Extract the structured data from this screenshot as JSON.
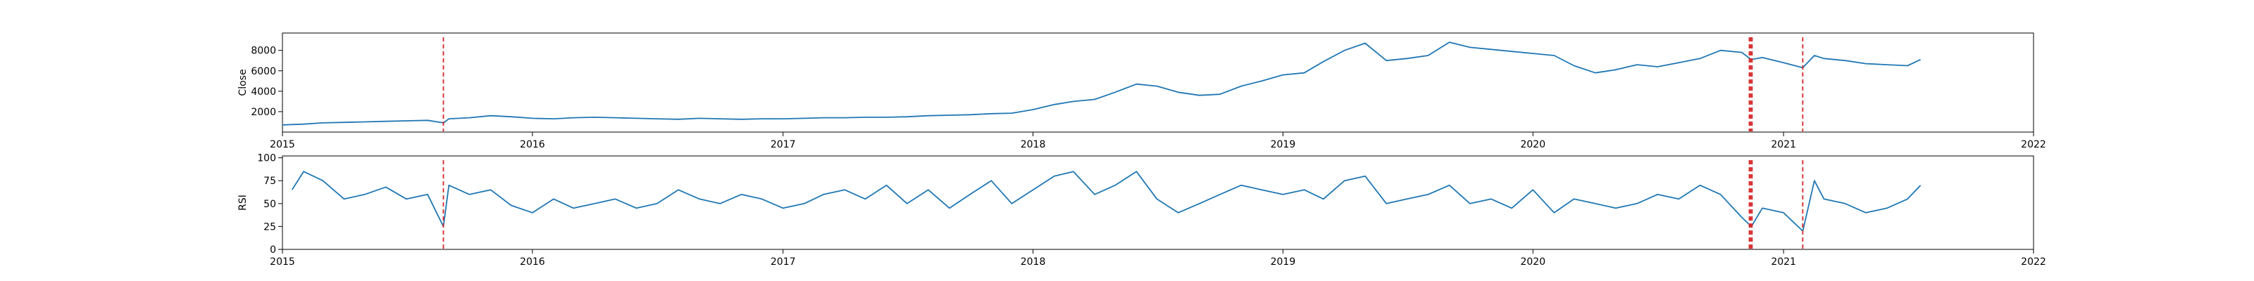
{
  "chart_data": [
    {
      "type": "line",
      "title": "",
      "xlabel": "",
      "ylabel": "Close",
      "xlim": [
        "2015-01-01",
        "2022-01-01"
      ],
      "ylim": [
        0,
        9700
      ],
      "x_ticks": [
        "2015",
        "2016",
        "2017",
        "2018",
        "2019",
        "2020",
        "2021",
        "2022"
      ],
      "y_ticks": [
        2000,
        4000,
        6000,
        8000
      ],
      "line_color": "#1f77b4",
      "marker_color": "#d62728",
      "marker_style": "dashed vertical lines",
      "vlines": [
        "2015-08-24",
        "2020-11-12",
        "2020-11-14",
        "2020-11-16",
        "2021-01-29"
      ],
      "series": [
        {
          "x": [
            "2015-01-01",
            "2015-02-01",
            "2015-03-01",
            "2015-04-01",
            "2015-05-01",
            "2015-06-01",
            "2015-07-01",
            "2015-08-01",
            "2015-08-24",
            "2015-09-01",
            "2015-10-01",
            "2015-11-01",
            "2015-12-01",
            "2016-01-01",
            "2016-02-01",
            "2016-03-01",
            "2016-04-01",
            "2016-05-01",
            "2016-06-01",
            "2016-07-01",
            "2016-08-01",
            "2016-09-01",
            "2016-10-01",
            "2016-11-01",
            "2016-12-01",
            "2017-01-01",
            "2017-02-01",
            "2017-03-01",
            "2017-04-01",
            "2017-05-01",
            "2017-06-01",
            "2017-07-01",
            "2017-08-01",
            "2017-09-01",
            "2017-10-01",
            "2017-11-01",
            "2017-12-01",
            "2018-01-01",
            "2018-02-01",
            "2018-03-01",
            "2018-04-01",
            "2018-05-01",
            "2018-06-01",
            "2018-07-01",
            "2018-08-01",
            "2018-09-01",
            "2018-10-01",
            "2018-11-01",
            "2018-12-01",
            "2019-01-01",
            "2019-02-01",
            "2019-03-01",
            "2019-04-01",
            "2019-05-01",
            "2019-06-01",
            "2019-07-01",
            "2019-08-01",
            "2019-09-01",
            "2019-10-01",
            "2019-11-01",
            "2019-12-01",
            "2020-01-01",
            "2020-02-01",
            "2020-03-01",
            "2020-04-01",
            "2020-05-01",
            "2020-06-01",
            "2020-07-01",
            "2020-08-01",
            "2020-09-01",
            "2020-10-01",
            "2020-11-01",
            "2020-11-15",
            "2020-12-01",
            "2021-01-01",
            "2021-01-29",
            "2021-02-15",
            "2021-03-01",
            "2021-04-01",
            "2021-05-01",
            "2021-06-01",
            "2021-07-01",
            "2021-07-20"
          ],
          "values": [
            700,
            780,
            900,
            950,
            1000,
            1050,
            1100,
            1150,
            900,
            1300,
            1400,
            1600,
            1500,
            1350,
            1300,
            1400,
            1450,
            1400,
            1350,
            1300,
            1250,
            1350,
            1300,
            1250,
            1300,
            1300,
            1350,
            1400,
            1400,
            1450,
            1450,
            1500,
            1600,
            1650,
            1700,
            1800,
            1850,
            2200,
            2700,
            3000,
            3200,
            3900,
            4700,
            4500,
            3900,
            3600,
            3700,
            4500,
            5000,
            5600,
            5800,
            6900,
            8000,
            8700,
            7000,
            7200,
            7500,
            8800,
            8300,
            8100,
            7900,
            7700,
            7500,
            6500,
            5800,
            6100,
            6600,
            6400,
            6800,
            7200,
            8000,
            7800,
            7100,
            7300,
            6800,
            6300,
            7500,
            7200,
            7000,
            6700,
            6600,
            6500,
            7100
          ]
        }
      ]
    },
    {
      "type": "line",
      "title": "",
      "xlabel": "",
      "ylabel": "RSI",
      "xlim": [
        "2015-01-01",
        "2022-01-01"
      ],
      "ylim": [
        0,
        102
      ],
      "x_ticks": [
        "2015",
        "2016",
        "2017",
        "2018",
        "2019",
        "2020",
        "2021",
        "2022"
      ],
      "y_ticks": [
        0,
        25,
        50,
        75,
        100
      ],
      "line_color": "#1f77b4",
      "marker_color": "#d62728",
      "marker_style": "dashed vertical lines",
      "vlines": [
        "2015-08-24",
        "2020-11-12",
        "2020-11-14",
        "2020-11-16",
        "2021-01-29"
      ],
      "series": [
        {
          "x": [
            "2015-01-15",
            "2015-02-01",
            "2015-03-01",
            "2015-04-01",
            "2015-05-01",
            "2015-06-01",
            "2015-07-01",
            "2015-08-01",
            "2015-08-24",
            "2015-09-01",
            "2015-10-01",
            "2015-11-01",
            "2015-12-01",
            "2016-01-01",
            "2016-02-01",
            "2016-03-01",
            "2016-04-01",
            "2016-05-01",
            "2016-06-01",
            "2016-07-01",
            "2016-08-01",
            "2016-09-01",
            "2016-10-01",
            "2016-11-01",
            "2016-12-01",
            "2017-01-01",
            "2017-02-01",
            "2017-03-01",
            "2017-04-01",
            "2017-05-01",
            "2017-06-01",
            "2017-07-01",
            "2017-08-01",
            "2017-09-01",
            "2017-10-01",
            "2017-11-01",
            "2017-12-01",
            "2018-01-01",
            "2018-02-01",
            "2018-03-01",
            "2018-04-01",
            "2018-05-01",
            "2018-06-01",
            "2018-07-01",
            "2018-08-01",
            "2018-09-01",
            "2018-10-01",
            "2018-11-01",
            "2018-12-01",
            "2019-01-01",
            "2019-02-01",
            "2019-03-01",
            "2019-04-01",
            "2019-05-01",
            "2019-06-01",
            "2019-07-01",
            "2019-08-01",
            "2019-09-01",
            "2019-10-01",
            "2019-11-01",
            "2019-12-01",
            "2020-01-01",
            "2020-02-01",
            "2020-03-01",
            "2020-04-01",
            "2020-05-01",
            "2020-06-01",
            "2020-07-01",
            "2020-08-01",
            "2020-09-01",
            "2020-10-01",
            "2020-11-01",
            "2020-11-15",
            "2020-12-01",
            "2021-01-01",
            "2021-01-29",
            "2021-02-15",
            "2021-03-01",
            "2021-04-01",
            "2021-05-01",
            "2021-06-01",
            "2021-07-01",
            "2021-07-20"
          ],
          "values": [
            65,
            85,
            75,
            55,
            60,
            68,
            55,
            60,
            25,
            70,
            60,
            65,
            48,
            40,
            55,
            45,
            50,
            55,
            45,
            50,
            65,
            55,
            50,
            60,
            55,
            45,
            50,
            60,
            65,
            55,
            70,
            50,
            65,
            45,
            60,
            75,
            50,
            65,
            80,
            85,
            60,
            70,
            85,
            55,
            40,
            50,
            60,
            70,
            65,
            60,
            65,
            55,
            75,
            80,
            50,
            55,
            60,
            70,
            50,
            55,
            45,
            65,
            40,
            55,
            50,
            45,
            50,
            60,
            55,
            70,
            60,
            35,
            25,
            45,
            40,
            20,
            75,
            55,
            50,
            40,
            45,
            55,
            70
          ]
        }
      ]
    }
  ]
}
